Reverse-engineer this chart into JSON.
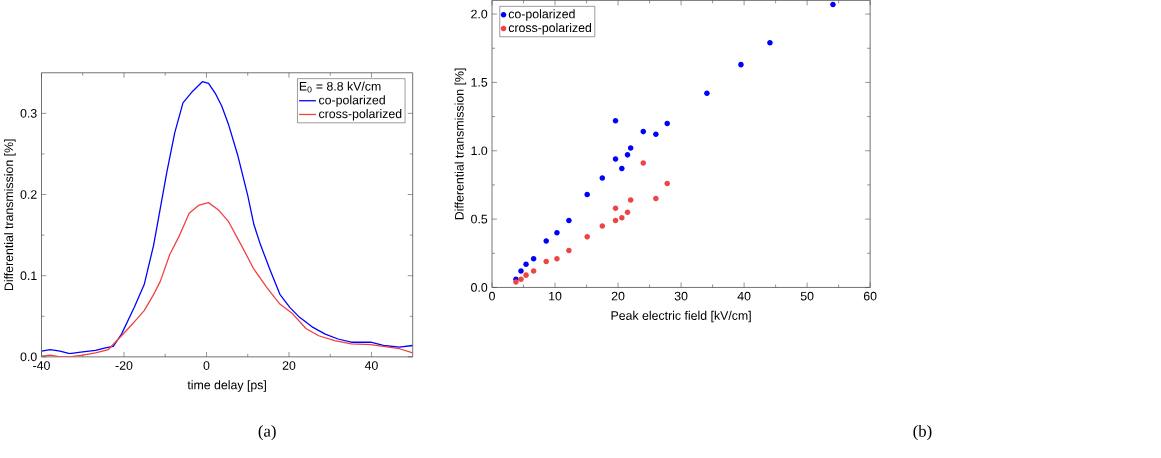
{
  "chart_data": [
    {
      "type": "line",
      "xlabel": "time delay [ps]",
      "ylabel": "Differential transmission [%]",
      "legend_title": "E$_{0}$ = 8.8 kV/cm",
      "legend": "top right",
      "marker": "none",
      "line_style": "solid",
      "grid": false,
      "xlim": [
        -40,
        50
      ],
      "ylim": [
        0,
        0.35
      ],
      "xticks": [
        -40,
        -20,
        0,
        20,
        40
      ],
      "yticks": [
        {
          "value": 0,
          "label": "0.0"
        },
        {
          "value": 0.1,
          "label": "0.1"
        },
        {
          "value": 0.2,
          "label": "0.2"
        },
        {
          "value": 0.3,
          "label": "0.3"
        }
      ],
      "annotations": [
        "(a)"
      ],
      "series": [
        {
          "name": "co-polarized",
          "color": "#0000ff",
          "x": [
            -40,
            -37.9,
            -35.5,
            -33.2,
            -30.0,
            -26.9,
            -24.5,
            -22.6,
            -20.6,
            -17.5,
            -15.1,
            -12.8,
            -11.2,
            -9.6,
            -7.7,
            -5.7,
            -3.4,
            -1.0,
            0.5,
            2.1,
            3.7,
            5.3,
            7.6,
            10.0,
            11.5,
            13.1,
            15.5,
            17.8,
            20.2,
            22.5,
            25.6,
            28.8,
            31.9,
            35.1,
            39.8,
            42.9,
            46.8,
            50
          ],
          "values": [
            0.007,
            0.009,
            0.007,
            0.004,
            0.006,
            0.008,
            0.011,
            0.013,
            0.028,
            0.061,
            0.089,
            0.138,
            0.183,
            0.228,
            0.276,
            0.313,
            0.327,
            0.339,
            0.337,
            0.325,
            0.309,
            0.287,
            0.248,
            0.199,
            0.163,
            0.138,
            0.106,
            0.077,
            0.061,
            0.049,
            0.037,
            0.028,
            0.022,
            0.018,
            0.018,
            0.014,
            0.012,
            0.014
          ]
        },
        {
          "name": "cross-polarized",
          "color": "#f04040",
          "x": [
            -40,
            -37.9,
            -35.5,
            -33.2,
            -30.0,
            -26.9,
            -23.8,
            -20.6,
            -17.5,
            -15.1,
            -12.8,
            -11.2,
            -8.9,
            -6.5,
            -4.2,
            -1.8,
            0.5,
            2.9,
            5.3,
            8.4,
            11.5,
            14.7,
            17.8,
            20.9,
            24.1,
            27.2,
            31.1,
            35.1,
            39.8,
            42.9,
            46.8,
            50
          ],
          "values": [
            0.001,
            0.002,
            0.0,
            0.0,
            0.002,
            0.005,
            0.009,
            0.026,
            0.043,
            0.057,
            0.077,
            0.093,
            0.126,
            0.15,
            0.177,
            0.187,
            0.19,
            0.181,
            0.167,
            0.138,
            0.108,
            0.085,
            0.065,
            0.053,
            0.035,
            0.026,
            0.02,
            0.016,
            0.015,
            0.013,
            0.01,
            0.005
          ]
        }
      ]
    },
    {
      "type": "scatter",
      "xlabel": "Peak electric field [kV/cm]",
      "ylabel": "Differential transmission [%]",
      "legend": "top left",
      "marker": "circle",
      "grid": false,
      "xlim": [
        0,
        60
      ],
      "ylim": [
        0,
        2.1
      ],
      "xticks": [
        0,
        10,
        20,
        30,
        40,
        50,
        60
      ],
      "yticks": [
        {
          "value": 0,
          "label": "0.0"
        },
        {
          "value": 0.5,
          "label": "0.5"
        },
        {
          "value": 1,
          "label": "1.0"
        },
        {
          "value": 1.5,
          "label": "1.5"
        },
        {
          "value": 2,
          "label": "2.0"
        }
      ],
      "annotations": [
        "(b)"
      ],
      "series": [
        {
          "name": "co-polarized",
          "color": "#0000ff",
          "x": [
            3.8,
            4.6,
            5.4,
            6.6,
            8.6,
            10.3,
            12.2,
            15.1,
            17.5,
            19.6,
            19.6,
            20.6,
            21.5,
            22.0,
            24.0,
            26.0,
            27.8,
            34.1,
            39.5,
            44.1,
            54.1
          ],
          "values": [
            0.06,
            0.12,
            0.17,
            0.21,
            0.34,
            0.4,
            0.49,
            0.68,
            0.8,
            1.22,
            0.94,
            0.87,
            0.97,
            1.02,
            1.14,
            1.12,
            1.2,
            1.42,
            1.63,
            1.79,
            2.07
          ]
        },
        {
          "name": "cross-polarized",
          "color": "#ee4444",
          "x": [
            3.8,
            4.6,
            5.4,
            6.6,
            8.6,
            10.3,
            12.2,
            15.1,
            17.5,
            19.6,
            19.6,
            20.6,
            21.5,
            22.0,
            24.0,
            26.0,
            27.8
          ],
          "values": [
            0.04,
            0.06,
            0.09,
            0.12,
            0.19,
            0.21,
            0.27,
            0.37,
            0.45,
            0.58,
            0.49,
            0.51,
            0.55,
            0.64,
            0.91,
            0.65,
            0.76
          ]
        }
      ]
    }
  ]
}
